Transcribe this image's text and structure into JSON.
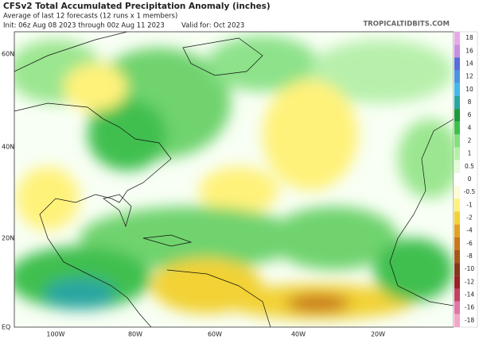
{
  "header": {
    "title": "CFSv2 Total Accumulated Precipitation Anomaly (inches)",
    "subtitle": "Average of last 12 forecasts (12 runs x 1 members)",
    "init": "Init: 06z Aug 08 2023 through 00z Aug 11 2023",
    "valid": "Valid for: Oct 2023",
    "source": "TROPICALTIDBITS.COM"
  },
  "map": {
    "lat_labels": [
      "60N",
      "40N",
      "20N",
      "EQ"
    ],
    "lon_labels": [
      "100W",
      "80W",
      "60W",
      "40W",
      "20W"
    ]
  },
  "colorbar": {
    "labels": [
      "18",
      "16",
      "14",
      "12",
      "10",
      "8",
      "6",
      "4",
      "2",
      "1",
      "0.5",
      "0",
      "-0.5",
      "-1",
      "-2",
      "-4",
      "-6",
      "-8",
      "-10",
      "-12",
      "-14",
      "-16",
      "-18"
    ],
    "colors": [
      "#e8a8e8",
      "#c890e0",
      "#5a6ed8",
      "#4a94e0",
      "#44b8e8",
      "#2aa6a0",
      "#1e9a3c",
      "#3cc048",
      "#84e07c",
      "#b6f0a8",
      "#e2fbd8",
      "#ffffff",
      "#fffbd2",
      "#fff27a",
      "#f2d236",
      "#e0a224",
      "#c8781a",
      "#a85618",
      "#84381a",
      "#9a2222",
      "#c24262",
      "#e076a6",
      "#f4a6c8"
    ]
  }
}
